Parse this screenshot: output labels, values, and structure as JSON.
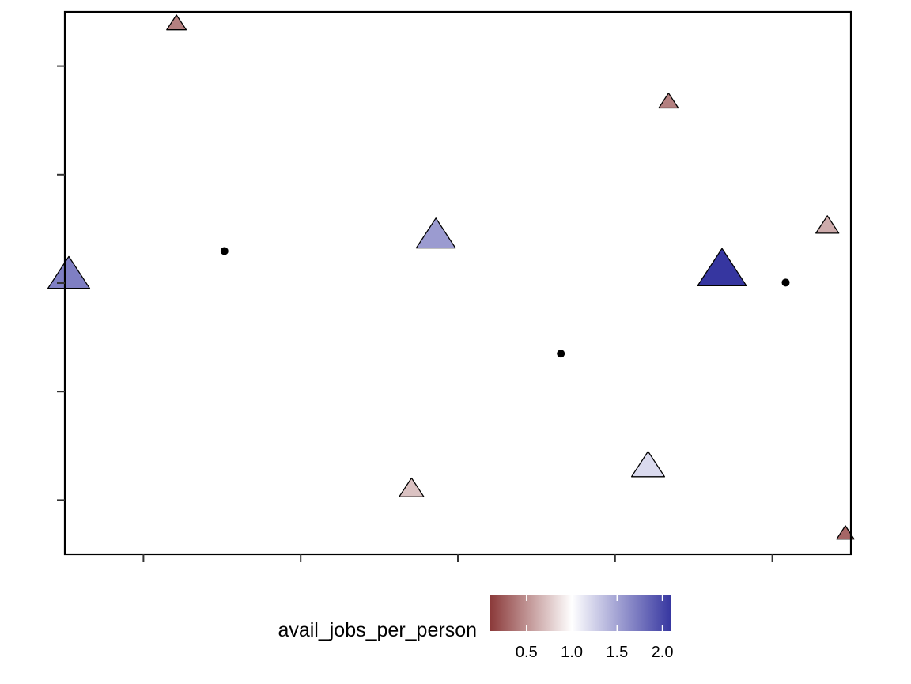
{
  "chart_data": {
    "type": "scatter",
    "title": "",
    "xlabel": "",
    "ylabel": "",
    "xlim": [
      0,
      1000
    ],
    "ylim": [
      0,
      1000
    ],
    "x_ticks": [
      100,
      300,
      500,
      700,
      900
    ],
    "y_ticks": [
      100,
      300,
      500,
      700,
      900
    ],
    "tick_labels_shown": false,
    "grid": false,
    "legend": {
      "title": "avail_jobs_per_person",
      "placement": "bottom",
      "type": "colorbar",
      "breaks": [
        0.5,
        1.0,
        1.5,
        2.0
      ],
      "break_labels": [
        "0.5",
        "1.0",
        "1.5",
        "2.0"
      ],
      "range": [
        0.1,
        2.1
      ]
    },
    "color_scale": {
      "low": "#8b3a3a",
      "mid": "#ffffff",
      "high": "#3636a0",
      "midpoint": 1.0
    },
    "series": [
      {
        "shape": "triangle",
        "points": [
          {
            "x": 142,
            "y": 978,
            "value": 0.42
          },
          {
            "x": 768,
            "y": 834,
            "value": 0.42
          },
          {
            "x": 970,
            "y": 605,
            "value": 0.62
          },
          {
            "x": 472,
            "y": 587,
            "value": 1.55
          },
          {
            "x": 836,
            "y": 523,
            "value": 2.1
          },
          {
            "x": 5,
            "y": 514,
            "value": 1.7
          },
          {
            "x": 742,
            "y": 162,
            "value": 1.2
          },
          {
            "x": 441,
            "y": 120,
            "value": 0.72
          },
          {
            "x": 993,
            "y": 38,
            "value": 0.3
          }
        ]
      },
      {
        "shape": "dot",
        "color": "#000000",
        "points": [
          {
            "x": 203,
            "y": 559
          },
          {
            "x": 631,
            "y": 370
          },
          {
            "x": 917,
            "y": 501
          }
        ]
      }
    ]
  }
}
